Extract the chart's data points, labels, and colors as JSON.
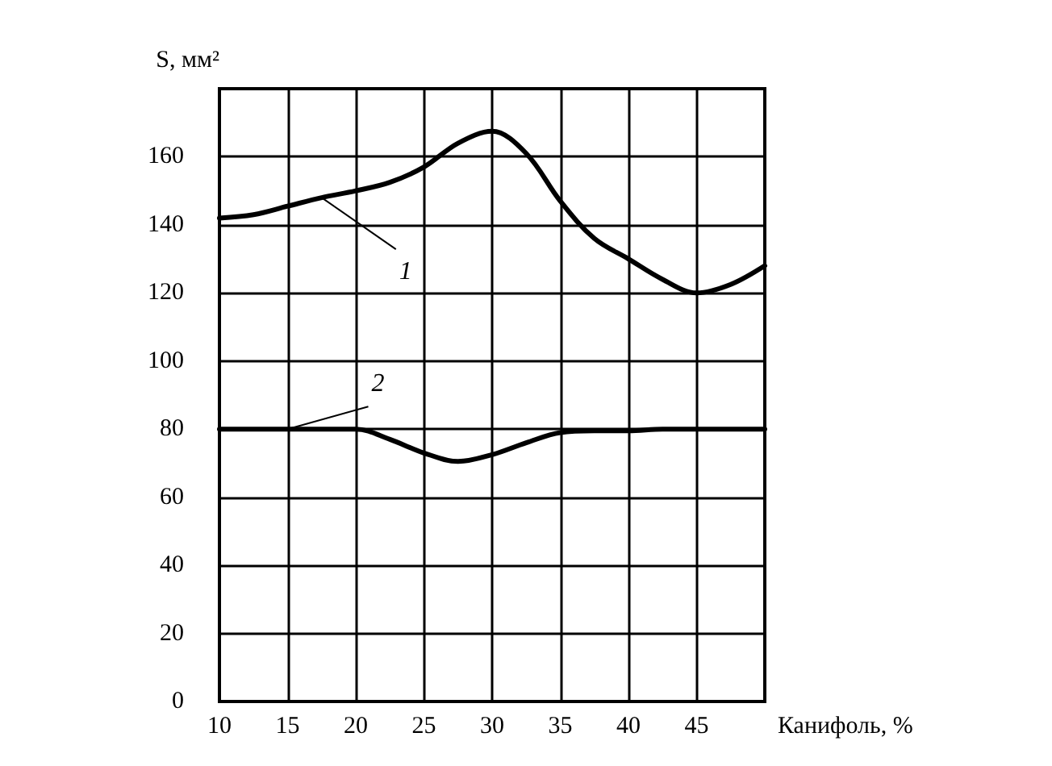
{
  "chart_data": {
    "type": "line",
    "xlabel": "Канифоль, %",
    "ylabel": "S, мм²",
    "xlim": [
      10,
      50
    ],
    "xticks": [
      10,
      15,
      20,
      25,
      30,
      35,
      40,
      45
    ],
    "ylim": [
      0,
      180
    ],
    "yticks": [
      0,
      20,
      40,
      60,
      80,
      100,
      120,
      140,
      160
    ],
    "grid": true,
    "legend": false,
    "marker": "none",
    "line_style": "solid",
    "x": [
      10,
      12.5,
      15,
      17.5,
      20,
      22.5,
      25,
      27.5,
      30,
      32.5,
      35,
      37.5,
      40,
      42.5,
      45,
      47.5,
      50
    ],
    "series": [
      {
        "name": "1",
        "color": "#000000",
        "values": [
          142,
          143,
          145.5,
          148,
          150,
          152.5,
          157,
          164,
          167.5,
          161,
          147,
          136,
          130,
          124,
          120,
          122.5,
          128
        ]
      },
      {
        "name": "2",
        "color": "#000000",
        "values": [
          80,
          80,
          80,
          80,
          80,
          77,
          73,
          70.5,
          72.5,
          76,
          79,
          79.5,
          79.5,
          80,
          80,
          80,
          80
        ]
      }
    ]
  }
}
